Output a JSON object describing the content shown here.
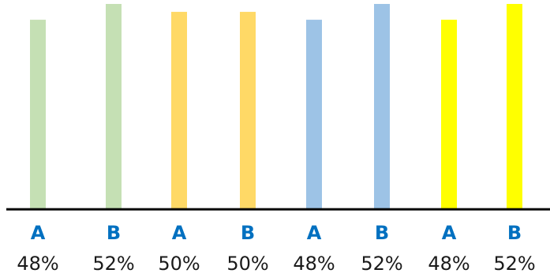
{
  "chart_data": {
    "type": "bar",
    "categories": [
      "A",
      "B",
      "A",
      "B",
      "A",
      "B",
      "A",
      "B"
    ],
    "values": [
      48,
      52,
      50,
      50,
      48,
      52,
      48,
      52
    ],
    "value_labels": [
      "48%",
      "52%",
      "50%",
      "50%",
      "48%",
      "52%",
      "48%",
      "52%"
    ],
    "ylim": [
      0,
      53
    ],
    "grid": false,
    "legend": "none",
    "bar_colors": [
      "#c5e0b4",
      "#c5e0b4",
      "#ffd966",
      "#ffd966",
      "#9dc3e6",
      "#9dc3e6",
      "#ffff00",
      "#ffff00"
    ],
    "category_label_color": "#0070c0",
    "axis_color": "#000000"
  }
}
